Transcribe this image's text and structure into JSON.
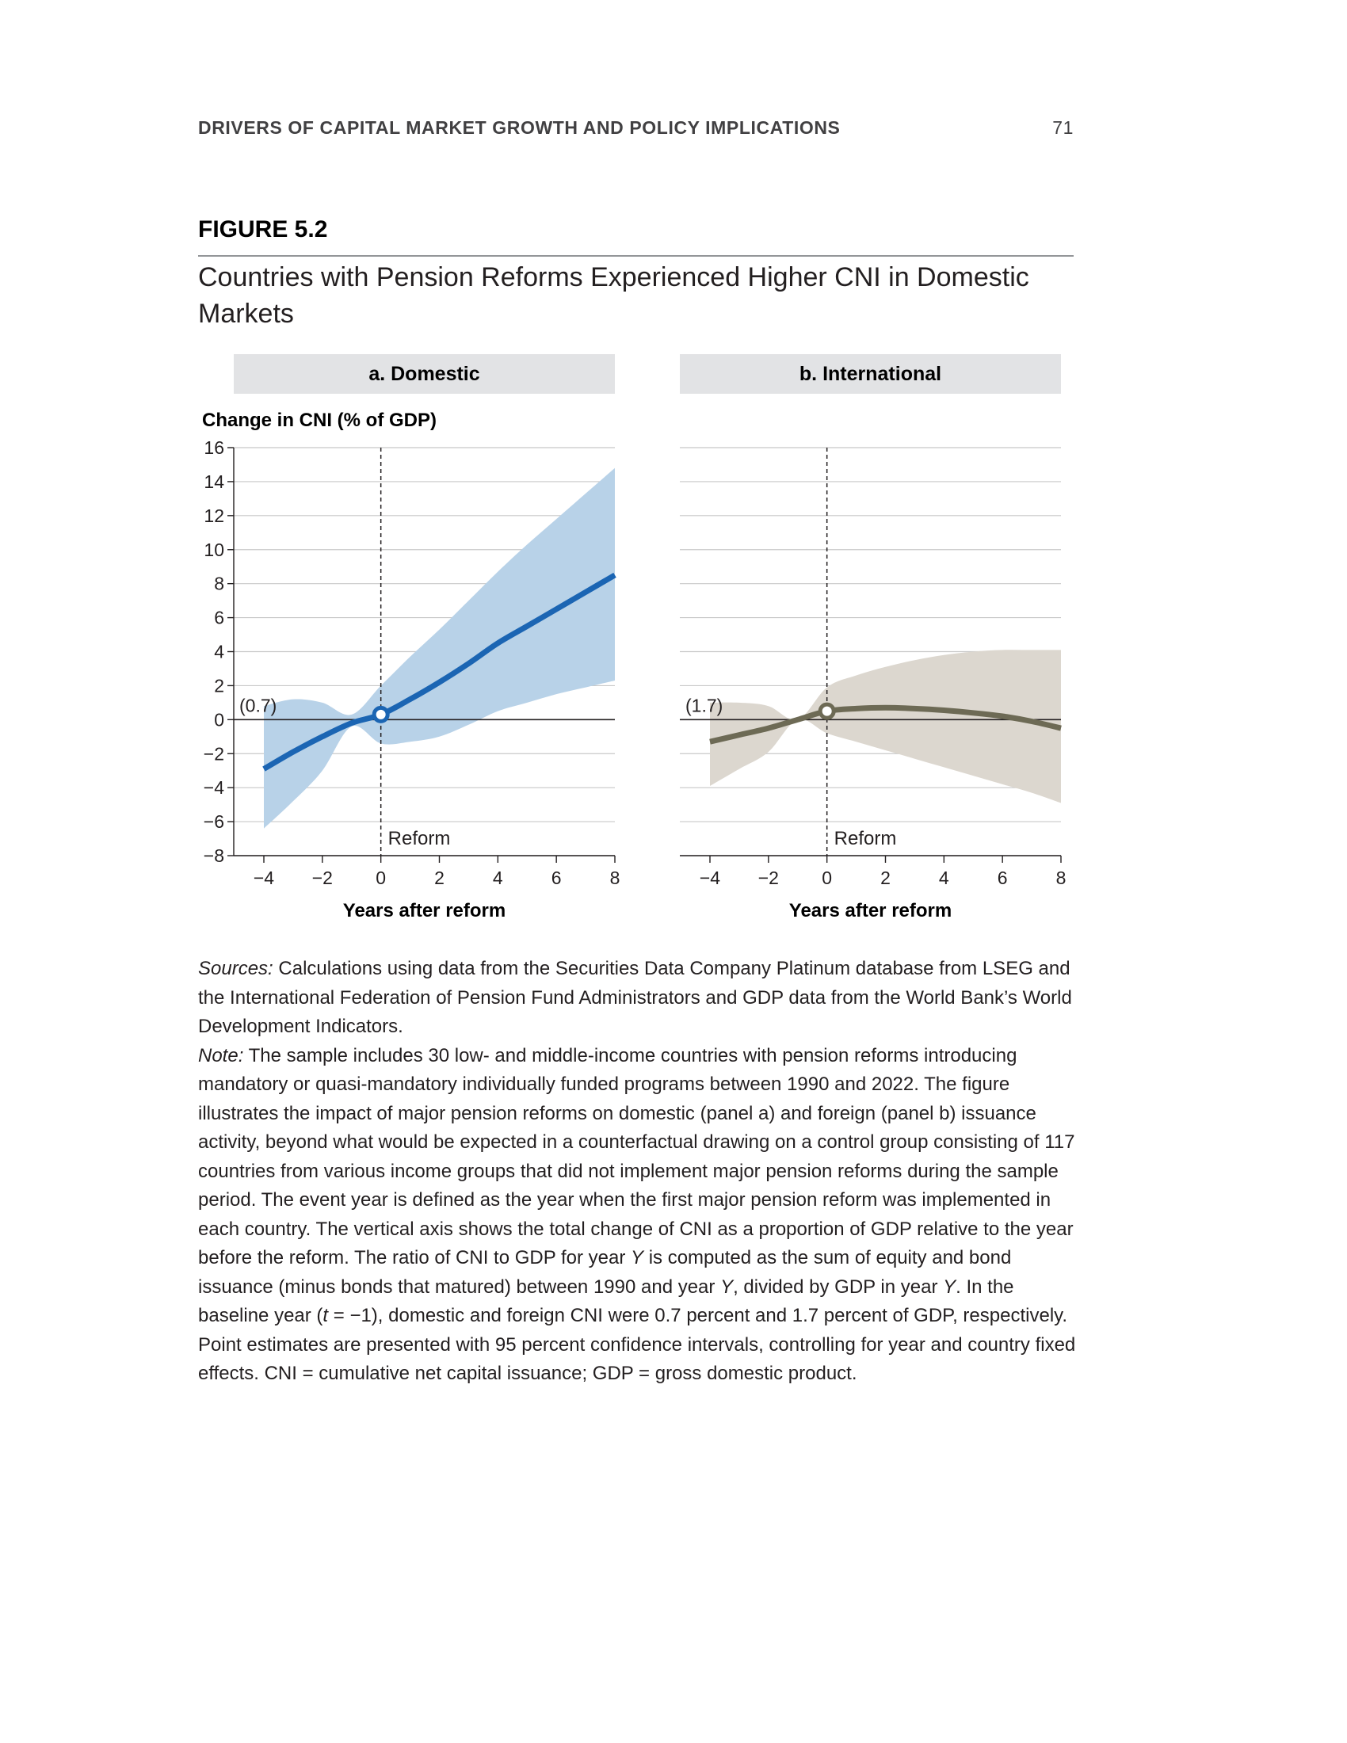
{
  "running_head": "DRIVERS OF CAPITAL MARKET GROWTH AND POLICY IMPLICATIONS",
  "page_number": "71",
  "figure_label": "FIGURE 5.2",
  "figure_title": "Countries with Pension Reforms Experienced Higher CNI in Domestic Markets",
  "colors": {
    "domestic_line": "#1b65b3",
    "domestic_band": "#b8d2e8",
    "international_line": "#6d6a55",
    "international_band": "#dcd7cf",
    "panel_header": "#e2e3e5"
  },
  "chart_data": [
    {
      "type": "line",
      "panel_title": "a. Domestic",
      "ylabel": "Change in CNI (% of GDP)",
      "xlabel": "Years after reform",
      "ylim": [
        -8,
        16
      ],
      "xlim": [
        -4,
        8
      ],
      "yticks": [
        "16",
        "14",
        "12",
        "10",
        "8",
        "6",
        "4",
        "2",
        "0",
        "−2",
        "−4",
        "−6",
        "−8"
      ],
      "xticks": [
        "−4",
        "−2",
        "0",
        "2",
        "4",
        "6",
        "8"
      ],
      "grid": true,
      "event_line": {
        "x": 0,
        "label": "Reform"
      },
      "baseline_annotation": "(0.7)",
      "x": [
        -4,
        -3,
        -2,
        -1,
        0,
        1,
        2,
        3,
        4,
        5,
        6,
        7,
        8
      ],
      "estimate": [
        -2.9,
        -1.9,
        -1.0,
        -0.2,
        0.3,
        1.2,
        2.2,
        3.3,
        4.5,
        5.5,
        6.5,
        7.5,
        8.5
      ],
      "ci_upper": [
        0.8,
        1.2,
        1.0,
        0.3,
        2.0,
        3.7,
        5.3,
        7.0,
        8.7,
        10.3,
        11.8,
        13.3,
        14.8
      ],
      "ci_lower": [
        -6.4,
        -4.8,
        -3.0,
        -0.4,
        -1.4,
        -1.3,
        -1.0,
        -0.3,
        0.5,
        1.0,
        1.5,
        1.9,
        2.3
      ],
      "point_marker": {
        "x": 0,
        "y": 0.3
      }
    },
    {
      "type": "line",
      "panel_title": "b. International",
      "xlabel": "Years after reform",
      "ylim": [
        -8,
        16
      ],
      "xlim": [
        -4,
        8
      ],
      "xticks": [
        "−4",
        "−2",
        "0",
        "2",
        "4",
        "6",
        "8"
      ],
      "grid": true,
      "event_line": {
        "x": 0,
        "label": "Reform"
      },
      "baseline_annotation": "(1.7)",
      "x": [
        -4,
        -3,
        -2,
        -1,
        0,
        1,
        2,
        3,
        4,
        5,
        6,
        7,
        8
      ],
      "estimate": [
        -1.3,
        -0.9,
        -0.5,
        0.0,
        0.5,
        0.65,
        0.7,
        0.65,
        0.55,
        0.4,
        0.2,
        -0.1,
        -0.5
      ],
      "ci_upper": [
        1.0,
        1.0,
        0.8,
        0.0,
        1.9,
        2.6,
        3.1,
        3.5,
        3.8,
        4.0,
        4.1,
        4.1,
        4.1
      ],
      "ci_lower": [
        -3.9,
        -2.9,
        -1.9,
        0.0,
        -0.8,
        -1.3,
        -1.8,
        -2.3,
        -2.8,
        -3.3,
        -3.8,
        -4.3,
        -4.9
      ],
      "point_marker": {
        "x": 0,
        "y": 0.5
      }
    }
  ],
  "notes": {
    "sources_label": "Sources:",
    "sources_text": " Calculations using data from the Securities Data Company Platinum database from LSEG and the International Federation of Pension Fund Administrators and GDP data from the World Bank’s World Development Indicators.",
    "note_label": "Note:",
    "note_part1": " The sample includes 30 low- and middle-income countries with pension reforms introducing mandatory or quasi-mandatory individually funded programs between 1990 and 2022. The figure illustrates the impact of major pension reforms on domestic (panel a) and foreign (panel b) issuance activity, beyond what would be expected in a counterfactual drawing on a control group consisting of 117 countries from various income groups that did not implement major pension reforms during the sample period. The event year is defined as the year when the first major pension reform was implemented in each country. The vertical axis shows the total change of CNI as a proportion of GDP relative to the year before the reform. The ratio of CNI to GDP for year ",
    "var_y1": "Y",
    "note_part2": " is computed as the sum of equity and bond issuance (minus bonds that matured) between 1990 and year ",
    "var_y2": "Y",
    "note_part3": ", divided by GDP in year ",
    "var_y3": "Y",
    "note_part4": ". In the baseline year (",
    "var_t": "t",
    "note_part5": " = −1), domestic and foreign CNI were 0.7 percent and 1.7 percent of GDP, respectively. Point estimates are presented with 95 percent confidence intervals, controlling for year and country fixed effects. CNI = cumulative net capital issuance; GDP = gross domestic product."
  }
}
